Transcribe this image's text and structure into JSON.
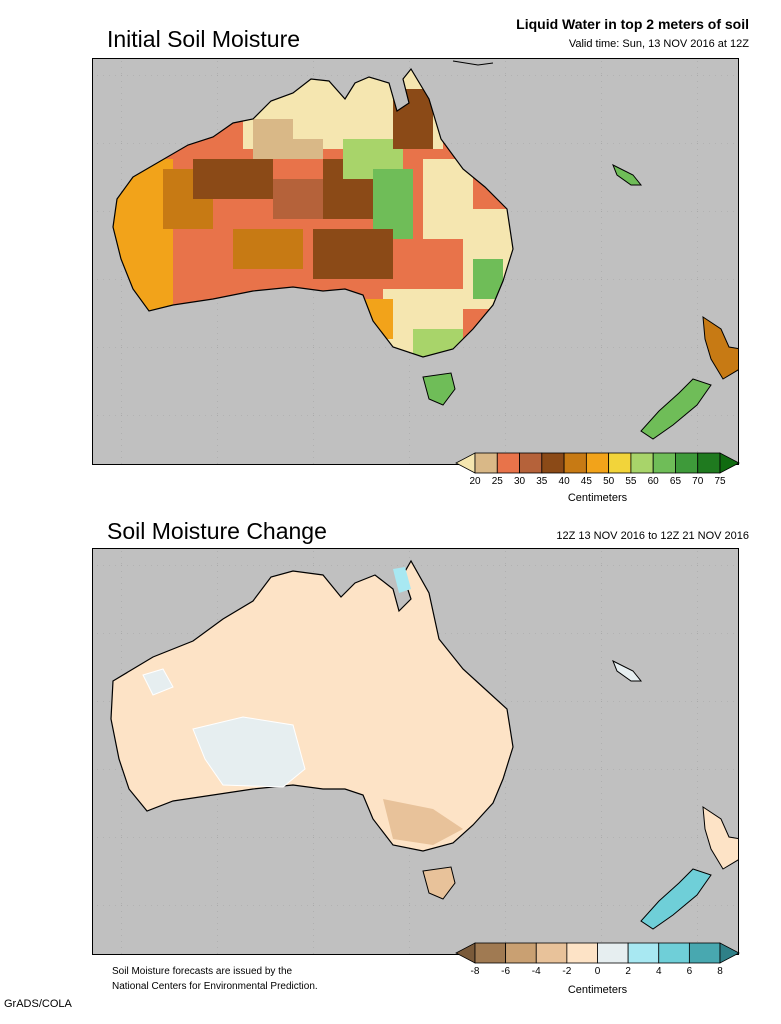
{
  "top_panel": {
    "title": "Initial Soil Moisture",
    "subtitle": "Liquid Water in top 2 meters of soil",
    "valid_time": "Valid time: Sun, 13 NOV 2016 at 12Z",
    "colorbar": {
      "labels": [
        "20",
        "25",
        "30",
        "35",
        "40",
        "45",
        "50",
        "55",
        "60",
        "65",
        "70",
        "75"
      ],
      "colors": [
        "#f5e6b0",
        "#d9b887",
        "#e8734a",
        "#b5623a",
        "#8b4a17",
        "#c77a14",
        "#f2a31a",
        "#f2d43a",
        "#a8d46a",
        "#6fbd58",
        "#3e9a3a",
        "#1f7a1f",
        "#106b10"
      ],
      "units": "Centimeters"
    }
  },
  "bottom_panel": {
    "title": "Soil Moisture Change",
    "time_range": "12Z 13 NOV 2016 to 12Z 21 NOV 2016",
    "colorbar": {
      "labels": [
        "-8",
        "-6",
        "-4",
        "-2",
        "0",
        "2",
        "4",
        "6",
        "8"
      ],
      "colors": [
        "#7a5a3a",
        "#a07a52",
        "#c9a072",
        "#e8c29a",
        "#fde3c6",
        "#e6eef0",
        "#a8e8f2",
        "#6fcfd8",
        "#48a8b0",
        "#2f8088"
      ],
      "units": "Centimeters"
    }
  },
  "footer": {
    "note_line1": "Soil Moisture forecasts are issued by the",
    "note_line2": "National Centers for Environmental Prediction.",
    "credit": "GrADS/COLA"
  }
}
